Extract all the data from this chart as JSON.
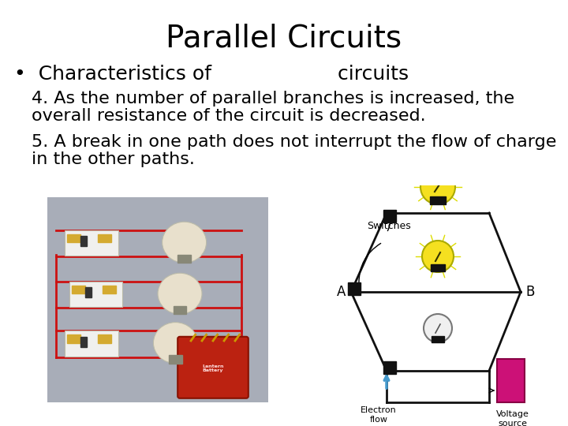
{
  "title": "Parallel Circuits",
  "title_fontsize": 28,
  "title_fontweight": "normal",
  "bullet_text": "•  Characteristics of                    circuits",
  "bullet_fontsize": 18,
  "body_lines_1": [
    "4. As the number of parallel branches is increased, the",
    "overall resistance of the circuit is decreased."
  ],
  "body_lines_2": [
    "5. A break in one path does not interrupt the flow of charge",
    "in the other paths."
  ],
  "body_fontsize": 16,
  "background_color": "#ffffff",
  "text_color": "#000000",
  "left_photo_bg": "#b0b5be",
  "circuit_bg": "#ffffff"
}
